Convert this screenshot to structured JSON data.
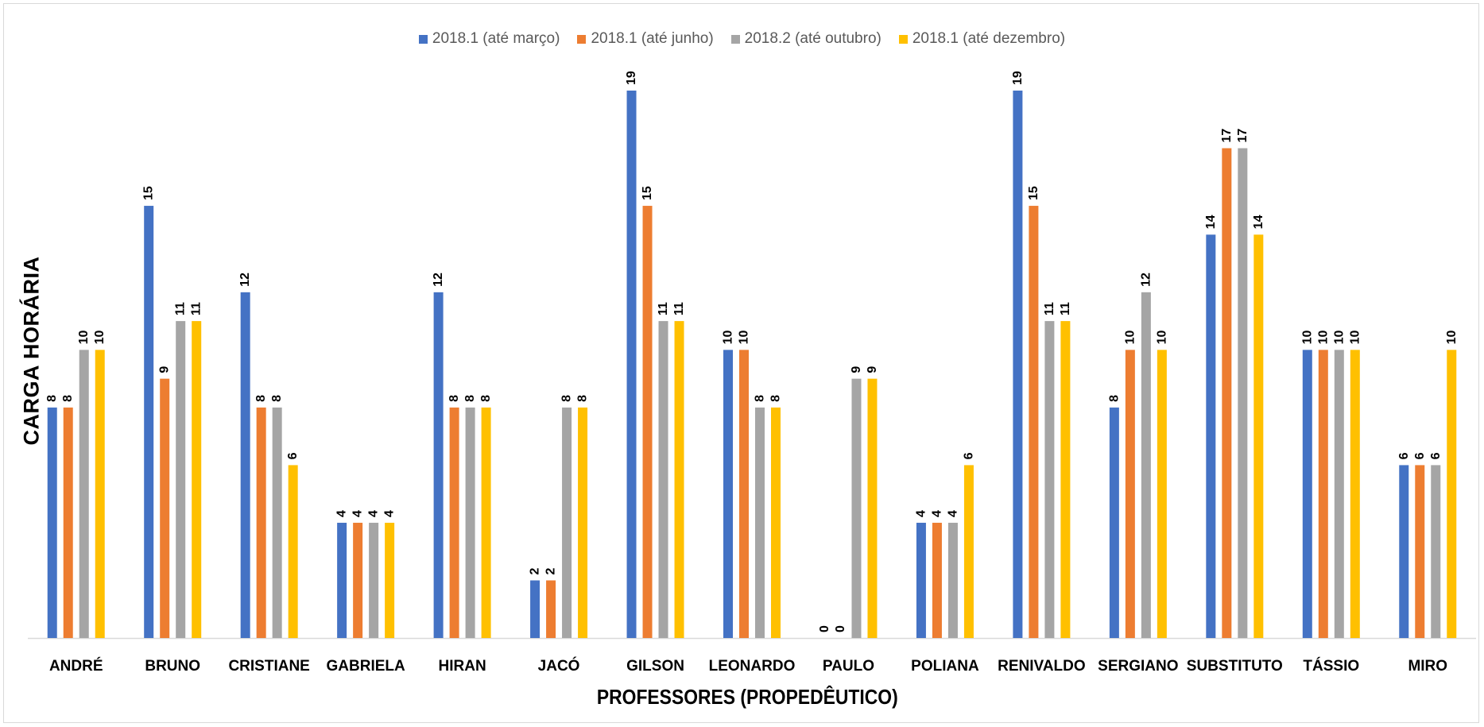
{
  "chart_data": {
    "type": "bar",
    "title": "",
    "xlabel": "PROFESSORES (PROPEDÊUTICO)",
    "ylabel": "CARGA HORÁRIA",
    "ylim": [
      0,
      19
    ],
    "grid": false,
    "legend_position": "top-center",
    "categories": [
      "ANDRÉ",
      "BRUNO",
      "CRISTIANE",
      "GABRIELA",
      "HIRAN",
      "JACÓ",
      "GILSON",
      "LEONARDO",
      "PAULO",
      "POLIANA",
      "RENIVALDO",
      "SERGIANO",
      "SUBSTITUTO",
      "TÁSSIO",
      "MIRO"
    ],
    "series": [
      {
        "name": "2018.1 (até março)",
        "color": "#4472c4",
        "values": [
          8,
          15,
          12,
          4,
          12,
          2,
          19,
          10,
          0,
          4,
          19,
          8,
          14,
          10,
          6
        ]
      },
      {
        "name": "2018.1 (até junho)",
        "color": "#ed7d31",
        "values": [
          8,
          9,
          8,
          4,
          8,
          2,
          15,
          10,
          0,
          4,
          15,
          10,
          17,
          10,
          6
        ]
      },
      {
        "name": "2018.2 (até outubro)",
        "color": "#a5a5a5",
        "values": [
          10,
          11,
          8,
          4,
          8,
          8,
          11,
          8,
          9,
          4,
          11,
          12,
          17,
          10,
          6
        ]
      },
      {
        "name": "2018.1 (até dezembro)",
        "color": "#ffc000",
        "values": [
          10,
          11,
          6,
          4,
          8,
          8,
          11,
          8,
          9,
          6,
          11,
          10,
          14,
          10,
          10
        ]
      }
    ]
  }
}
